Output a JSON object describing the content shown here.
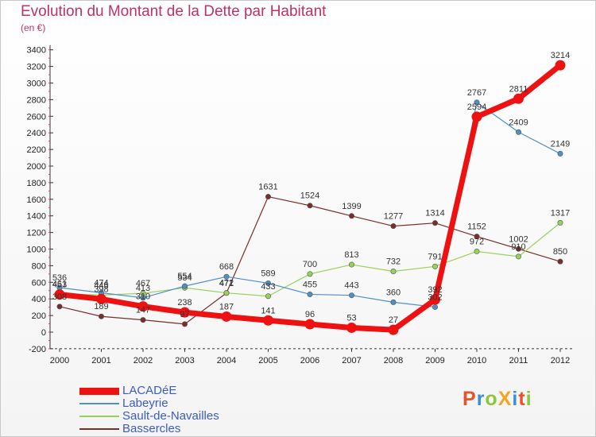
{
  "header": {
    "title": "Evolution du Montant de la Dette par Habitant",
    "subtitle": "(en €)"
  },
  "logo": {
    "text": "ProXiti",
    "colors": [
      "#e8522a",
      "#3b8fd6",
      "#8cc63e",
      "#f4a623",
      "#3b8fd6",
      "#e8522a",
      "#8cc63e"
    ]
  },
  "chart_data": {
    "type": "line",
    "x": [
      "2000",
      "2001",
      "2002",
      "2003",
      "2004",
      "2005",
      "2006",
      "2007",
      "2008",
      "2009",
      "2010",
      "2011",
      "2012"
    ],
    "ylim": [
      -200,
      3400
    ],
    "yticks": [
      "-200",
      "0",
      "200",
      "400",
      "600",
      "800",
      "1000",
      "1200",
      "1400",
      "1600",
      "1800",
      "2000",
      "2200",
      "2400",
      "2600",
      "2800",
      "3000",
      "3200",
      "3400"
    ],
    "grid": false,
    "legend_position": "bottom-left",
    "series": [
      {
        "name": "LACADéE",
        "color": "#ee1111",
        "emphasis": true,
        "values": [
          453,
          398,
          310,
          238,
          187,
          141,
          96,
          53,
          27,
          392,
          2594,
          2811,
          3214
        ],
        "labels": [
          "453",
          "398",
          "310",
          "238",
          "187",
          "141",
          "96",
          "53",
          "27",
          "392",
          "2594",
          "2811",
          "3214"
        ]
      },
      {
        "name": "Labeyrie",
        "color": "#4f8fc4",
        "values": [
          536,
          474,
          413,
          554,
          668,
          589,
          455,
          443,
          360,
          302,
          2767,
          2409,
          2149
        ],
        "labels": [
          "536",
          "474",
          "413",
          "554",
          "668",
          "589",
          "455",
          "443",
          "360",
          "302",
          "2767",
          "2409",
          "2149"
        ]
      },
      {
        "name": "Sault-de-Navailles",
        "color": "#96d25a",
        "values": [
          461,
          446,
          467,
          534,
          472,
          433,
          700,
          813,
          732,
          791,
          972,
          910,
          1317
        ],
        "labels": [
          "461",
          "446",
          "467",
          "534",
          "472",
          "433",
          "700",
          "813",
          "732",
          "791",
          "972",
          "910",
          "1317"
        ]
      },
      {
        "name": "Bassercles",
        "color": "#7a2e2a",
        "values": [
          308,
          189,
          147,
          97,
          471,
          1631,
          1524,
          1399,
          1277,
          1314,
          1152,
          1002,
          850
        ],
        "labels": [
          "308",
          "189",
          "147",
          "97",
          "471",
          "1631",
          "1524",
          "1399",
          "1277",
          "1314",
          "1152",
          "1002",
          "850"
        ]
      }
    ]
  }
}
